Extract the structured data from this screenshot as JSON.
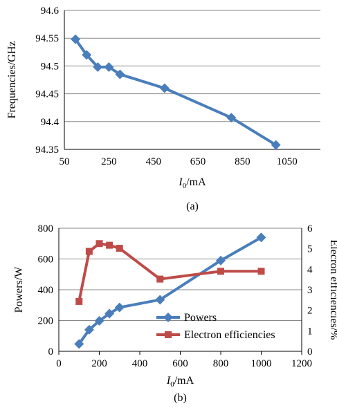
{
  "chart_data": [
    {
      "type": "line",
      "caption": "(a)",
      "xlabel_main": "I",
      "xlabel_sub": "0",
      "xlabel_rest": "/mA",
      "ylabel": "Frequencies/GHz",
      "xlim": [
        50,
        1200
      ],
      "ylim": [
        94.35,
        94.6
      ],
      "xticks": [
        "50",
        "250",
        "450",
        "650",
        "850",
        "1050"
      ],
      "yticks": [
        "94.35",
        "94.4",
        "94.45",
        "94.5",
        "94.55",
        "94.6"
      ],
      "grid": "horizontal",
      "series": [
        {
          "color": "#4a7ebb",
          "x": [
            100,
            150,
            200,
            250,
            300,
            500,
            800,
            1000
          ],
          "y": [
            94.548,
            94.52,
            94.498,
            94.498,
            94.485,
            94.46,
            94.407,
            94.358
          ]
        }
      ]
    },
    {
      "type": "line",
      "caption": "(b)",
      "xlabel_main": "I",
      "xlabel_sub": "0",
      "xlabel_rest": "/mA",
      "ylabel": "Powers/W",
      "y2label": "Elecron efficiencies/%",
      "xlim": [
        0,
        1200
      ],
      "ylim": [
        0,
        800
      ],
      "y2lim": [
        0,
        6
      ],
      "xticks": [
        "0",
        "200",
        "400",
        "600",
        "800",
        "1000",
        "1200"
      ],
      "yticks": [
        "0",
        "200",
        "400",
        "600",
        "800"
      ],
      "y2ticks": [
        "0",
        "1",
        "2",
        "3",
        "4",
        "5",
        "6"
      ],
      "grid": "horizontal",
      "legend_position": "bottom-right",
      "series": [
        {
          "name": "Powers",
          "color": "#4a7ebb",
          "axis": "left",
          "x": [
            100,
            150,
            200,
            250,
            300,
            500,
            800,
            1000
          ],
          "y": [
            48,
            140,
            198,
            245,
            285,
            335,
            590,
            740
          ]
        },
        {
          "name": "Electron efficiencies",
          "color": "#be4b48",
          "axis": "right",
          "x": [
            100,
            150,
            200,
            250,
            300,
            500,
            800,
            1000
          ],
          "y": [
            2.43,
            4.87,
            5.25,
            5.17,
            5.02,
            3.52,
            3.9,
            3.9
          ]
        }
      ]
    }
  ]
}
